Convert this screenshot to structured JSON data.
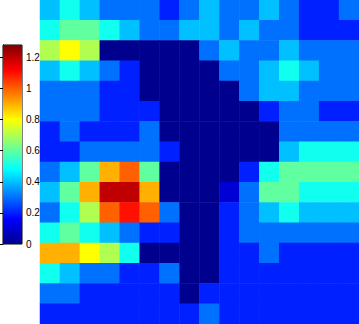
{
  "chart_data": {
    "type": "heatmap",
    "tick_labels": false,
    "cells": [
      [
        0.4,
        0.5,
        0.4,
        0.3,
        0.3,
        0.3,
        0.2,
        0.3,
        0.4,
        0.3,
        0.3,
        0.4,
        0.3,
        0.2,
        0.2,
        0.3
      ],
      [
        0.5,
        0.6,
        0.6,
        0.5,
        0.4,
        0.3,
        0.3,
        0.4,
        0.4,
        0.3,
        0.4,
        0.3,
        0.3,
        0.2,
        0.2,
        0.2
      ],
      [
        0.7,
        0.8,
        0.7,
        0,
        0,
        0,
        0,
        0,
        0.3,
        0.4,
        0.3,
        0.3,
        0.4,
        0.3,
        0.3,
        0.3
      ],
      [
        0.4,
        0.5,
        0.4,
        0.3,
        0.2,
        0,
        0,
        0,
        0,
        0.3,
        0.3,
        0.4,
        0.5,
        0.4,
        0.3,
        0.3
      ],
      [
        0.3,
        0.3,
        0.3,
        0.2,
        0.2,
        0,
        0,
        0,
        0,
        0,
        0.3,
        0.4,
        0.4,
        0.3,
        0.3,
        0.3
      ],
      [
        0.3,
        0.3,
        0.3,
        0.2,
        0.2,
        0.2,
        0,
        0,
        0,
        0,
        0,
        0.2,
        0.3,
        0.3,
        0.2,
        0.2
      ],
      [
        0.2,
        0.3,
        0.2,
        0.2,
        0.2,
        0.3,
        0,
        0,
        0,
        0,
        0,
        0,
        0.3,
        0.3,
        0.3,
        0.3
      ],
      [
        0.2,
        0.2,
        0.3,
        0.3,
        0.3,
        0.3,
        0.2,
        0,
        0,
        0,
        0,
        0,
        0.4,
        0.5,
        0.5,
        0.5
      ],
      [
        0.3,
        0.4,
        0.6,
        0.9,
        1.0,
        0.6,
        0,
        0,
        0,
        0,
        0.2,
        0.5,
        0.6,
        0.6,
        0.6,
        0.6
      ],
      [
        0.4,
        0.6,
        0.9,
        1.2,
        1.2,
        0.9,
        0,
        0,
        0,
        0.1,
        0.3,
        0.6,
        0.6,
        0.5,
        0.5,
        0.5
      ],
      [
        0.3,
        0.5,
        0.7,
        1.0,
        1.1,
        1.0,
        0.3,
        0,
        0,
        0.2,
        0.3,
        0.4,
        0.5,
        0.4,
        0.4,
        0.4
      ],
      [
        0.5,
        0.6,
        0.5,
        0.4,
        0.3,
        0.2,
        0.2,
        0,
        0,
        0.2,
        0.3,
        0.3,
        0.3,
        0.3,
        0.3,
        0.3
      ],
      [
        0.9,
        0.9,
        0.8,
        0.7,
        0.5,
        0,
        0,
        0,
        0,
        0.2,
        0.2,
        0.3,
        0.2,
        0.2,
        0.2,
        0.2
      ],
      [
        0.5,
        0.4,
        0.3,
        0.3,
        0.2,
        0.2,
        0.3,
        0,
        0,
        0.2,
        0.2,
        0.2,
        0.2,
        0.2,
        0.2,
        0.2
      ],
      [
        0.3,
        0.3,
        0.2,
        0.2,
        0.2,
        0.2,
        0.2,
        0,
        0.2,
        0.2,
        0.2,
        0.2,
        0.2,
        0.2,
        0.2,
        0.2
      ],
      [
        0.2,
        0.2,
        0.2,
        0.2,
        0.2,
        0.2,
        0.2,
        0.2,
        0.3,
        0.2,
        0.2,
        0.2,
        0.2,
        0.2,
        0.2,
        0.2
      ]
    ],
    "colorbar": {
      "range": [
        0,
        1.28
      ],
      "ticks": [
        0,
        0.2,
        0.4,
        0.6,
        0.8,
        1,
        1.2
      ]
    }
  }
}
